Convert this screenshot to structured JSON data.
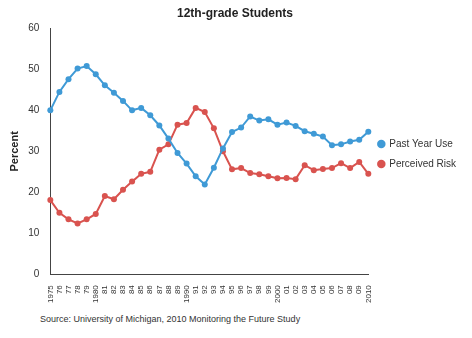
{
  "chart_data": {
    "type": "line",
    "title": "12th-grade Students",
    "y_label": "Percent",
    "annotations": [
      "Source: University of Michigan, 2010 Monitoring the Future Study"
    ],
    "categories": [
      "1975",
      "76",
      "77",
      "78",
      "79",
      "1980",
      "81",
      "82",
      "83",
      "84",
      "85",
      "86",
      "87",
      "88",
      "89",
      "1990",
      "91",
      "92",
      "93",
      "94",
      "95",
      "96",
      "97",
      "98",
      "99",
      "2000",
      "01",
      "02",
      "03",
      "04",
      "05",
      "06",
      "07",
      "08",
      "09",
      "2010"
    ],
    "series": [
      {
        "name": "Past Year Use",
        "color": "#3f9ad6",
        "marker": "circle",
        "values": [
          40.0,
          44.5,
          47.6,
          50.2,
          50.8,
          48.8,
          46.1,
          44.3,
          42.3,
          40.0,
          40.6,
          38.8,
          36.3,
          33.1,
          29.6,
          27.0,
          23.9,
          21.9,
          26.0,
          30.7,
          34.7,
          35.8,
          38.5,
          37.5,
          37.8,
          36.5,
          37.0,
          36.2,
          34.9,
          34.3,
          33.6,
          31.5,
          31.7,
          32.4,
          32.8,
          34.8
        ]
      },
      {
        "name": "Perceived Risk",
        "color": "#d9534f",
        "marker": "circle",
        "values": [
          18.1,
          15.0,
          13.4,
          12.4,
          13.4,
          14.7,
          19.1,
          18.3,
          20.6,
          22.6,
          24.5,
          25.0,
          30.4,
          31.7,
          36.5,
          36.9,
          40.6,
          39.6,
          35.6,
          30.0,
          25.6,
          25.9,
          24.7,
          24.4,
          23.9,
          23.4,
          23.5,
          23.2,
          26.6,
          25.4,
          25.7,
          25.9,
          27.1,
          25.9,
          27.4,
          24.5
        ]
      }
    ],
    "ylim": [
      0,
      60
    ],
    "yticks": [
      0,
      10,
      20,
      30,
      40,
      50,
      60
    ],
    "grid": false,
    "legend": "right"
  }
}
